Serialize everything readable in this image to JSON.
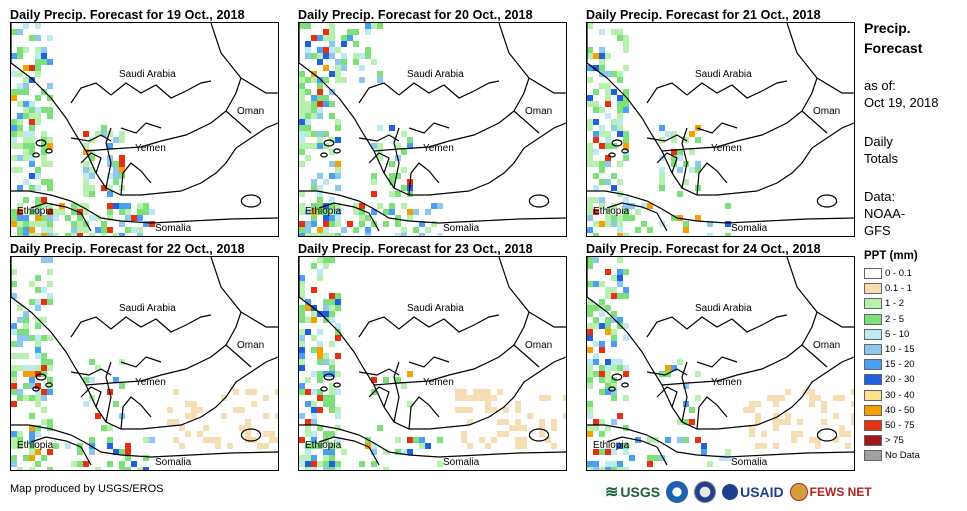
{
  "panels": [
    {
      "title": "Daily Precip. Forecast for 19 Oct., 2018"
    },
    {
      "title": "Daily Precip. Forecast for 20 Oct., 2018"
    },
    {
      "title": "Daily Precip. Forecast for 21 Oct., 2018"
    },
    {
      "title": "Daily Precip. Forecast for 22 Oct., 2018"
    },
    {
      "title": "Daily Precip. Forecast for 23 Oct., 2018"
    },
    {
      "title": "Daily Precip. Forecast for 24 Oct., 2018"
    }
  ],
  "map_labels": {
    "saudi": "Saudi Arabia",
    "oman": "Oman",
    "yemen": "Yemen",
    "ethiopia": "Ethiopia",
    "somalia": "Somalia"
  },
  "sidebar": {
    "heading_1": "Precip.",
    "heading_2": "Forecast",
    "asof_1": "as of:",
    "asof_2": "Oct 19, 2018",
    "daily_1": "Daily",
    "daily_2": "Totals",
    "data_1": "Data:",
    "data_2": "NOAA-",
    "data_3": "GFS"
  },
  "legend": {
    "title": "PPT (mm)",
    "items": [
      {
        "label": "0 - 0.1",
        "color": "#ffffff"
      },
      {
        "label": "0.1 - 1",
        "color": "#f5deb3"
      },
      {
        "label": "1 - 2",
        "color": "#b8f0b0"
      },
      {
        "label": "2 - 5",
        "color": "#7ee07a"
      },
      {
        "label": "5 - 10",
        "color": "#bfe8f5"
      },
      {
        "label": "10 - 15",
        "color": "#8ec8f0"
      },
      {
        "label": "15 - 20",
        "color": "#4a9ff0"
      },
      {
        "label": "20 - 30",
        "color": "#1f5fe0"
      },
      {
        "label": "30 - 40",
        "color": "#fce08a"
      },
      {
        "label": "40 - 50",
        "color": "#f5a000"
      },
      {
        "label": "50 - 75",
        "color": "#e83010"
      },
      {
        "label": "> 75",
        "color": "#a01818"
      },
      {
        "label": "No Data",
        "color": "#a0a0a0"
      }
    ]
  },
  "footer": {
    "credit": "Map produced by USGS/EROS",
    "logo_usgs": "USGS",
    "logo_usaid": "USAID",
    "logo_fews": "FEWS NET"
  }
}
